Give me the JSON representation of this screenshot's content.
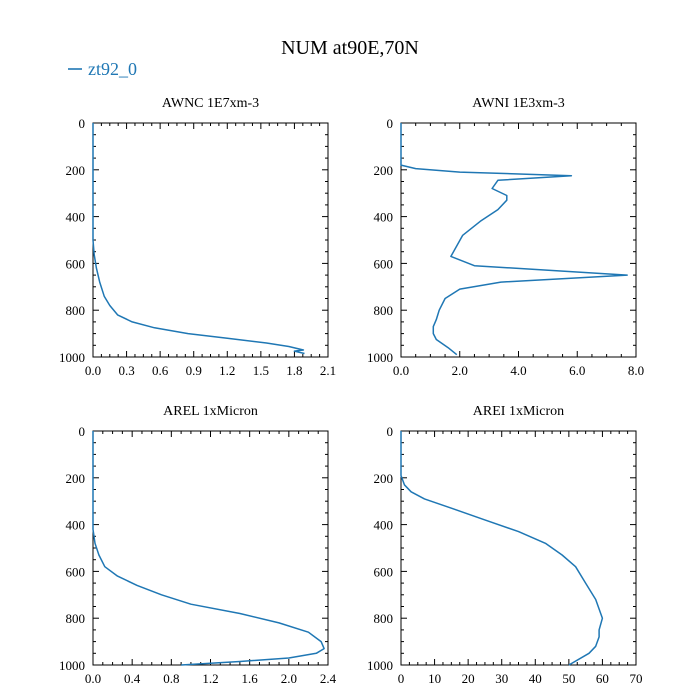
{
  "title": "NUM at90E,70N",
  "legend": {
    "label": "zt92_0",
    "color": "#1f77b4"
  },
  "chart_data": [
    {
      "type": "line",
      "title": "AWNC  1E7xm-3",
      "xlim": [
        0,
        2.1
      ],
      "ylim": [
        1000,
        0
      ],
      "xticks": [
        "0.0",
        "0.3",
        "0.6",
        "0.9",
        "1.2",
        "1.5",
        "1.8",
        "2.1"
      ],
      "xtick_values": [
        0,
        0.3,
        0.6,
        0.9,
        1.2,
        1.5,
        1.8,
        2.1
      ],
      "yticks": [
        "0",
        "200",
        "400",
        "600",
        "800",
        "1000"
      ],
      "ytick_values": [
        0,
        200,
        400,
        600,
        800,
        1000
      ],
      "series": [
        {
          "name": "zt92_0",
          "color": "#1f77b4",
          "x": [
            0,
            0,
            0.01,
            0.03,
            0.06,
            0.1,
            0.15,
            0.22,
            0.35,
            0.55,
            0.85,
            1.2,
            1.55,
            1.75,
            1.88,
            1.8,
            1.89
          ],
          "y": [
            0,
            500,
            560,
            620,
            680,
            740,
            780,
            820,
            850,
            875,
            900,
            920,
            940,
            955,
            970,
            975,
            985
          ]
        }
      ]
    },
    {
      "type": "line",
      "title": "AWNI  1E3xm-3",
      "xlim": [
        0,
        8.0
      ],
      "ylim": [
        1000,
        0
      ],
      "xticks": [
        "0.0",
        "2.0",
        "4.0",
        "6.0",
        "8.0"
      ],
      "xtick_values": [
        0,
        2,
        4,
        6,
        8
      ],
      "yticks": [
        "0",
        "200",
        "400",
        "600",
        "800",
        "1000"
      ],
      "ytick_values": [
        0,
        200,
        400,
        600,
        800,
        1000
      ],
      "series": [
        {
          "name": "zt92_0",
          "color": "#1f77b4",
          "x": [
            0,
            0,
            0.5,
            2.0,
            5.8,
            3.3,
            3.1,
            3.6,
            3.6,
            3.3,
            2.7,
            2.1,
            1.7,
            2.5,
            7.7,
            3.4,
            2.0,
            1.5,
            1.3,
            1.2,
            1.1,
            1.1,
            1.2,
            1.6,
            1.9
          ],
          "y": [
            0,
            180,
            195,
            210,
            225,
            245,
            280,
            310,
            330,
            370,
            420,
            480,
            570,
            610,
            650,
            680,
            710,
            750,
            800,
            840,
            870,
            900,
            925,
            960,
            990
          ]
        }
      ]
    },
    {
      "type": "line",
      "title": "AREL  1xMicron",
      "xlim": [
        0,
        2.4
      ],
      "ylim": [
        1000,
        0
      ],
      "xticks": [
        "0.0",
        "0.4",
        "0.8",
        "1.2",
        "1.6",
        "2.0",
        "2.4"
      ],
      "xtick_values": [
        0,
        0.4,
        0.8,
        1.2,
        1.6,
        2.0,
        2.4
      ],
      "yticks": [
        "0",
        "200",
        "400",
        "600",
        "800",
        "1000"
      ],
      "ytick_values": [
        0,
        200,
        400,
        600,
        800,
        1000
      ],
      "series": [
        {
          "name": "zt92_0",
          "color": "#1f77b4",
          "x": [
            0,
            0,
            0.02,
            0.06,
            0.12,
            0.25,
            0.45,
            0.7,
            1.0,
            1.5,
            1.9,
            2.2,
            2.33,
            2.36,
            2.28,
            2.0,
            1.5,
            0.9
          ],
          "y": [
            0,
            420,
            480,
            530,
            580,
            620,
            660,
            700,
            740,
            780,
            820,
            860,
            900,
            930,
            950,
            970,
            985,
            1000
          ]
        }
      ]
    },
    {
      "type": "line",
      "title": "AREI  1xMicron",
      "xlim": [
        0,
        70
      ],
      "ylim": [
        1000,
        0
      ],
      "xticks": [
        "0",
        "10",
        "20",
        "30",
        "40",
        "50",
        "60",
        "70"
      ],
      "xtick_values": [
        0,
        10,
        20,
        30,
        40,
        50,
        60,
        70
      ],
      "yticks": [
        "0",
        "200",
        "400",
        "600",
        "800",
        "1000"
      ],
      "ytick_values": [
        0,
        200,
        400,
        600,
        800,
        1000
      ],
      "series": [
        {
          "name": "zt92_0",
          "color": "#1f77b4",
          "x": [
            0,
            0,
            1,
            3,
            7,
            15,
            25,
            35,
            43,
            48,
            52,
            55,
            58,
            60,
            59,
            59,
            58,
            56,
            50
          ],
          "y": [
            0,
            190,
            230,
            260,
            290,
            330,
            380,
            430,
            480,
            530,
            580,
            650,
            720,
            800,
            850,
            880,
            920,
            950,
            1000
          ]
        }
      ]
    }
  ]
}
